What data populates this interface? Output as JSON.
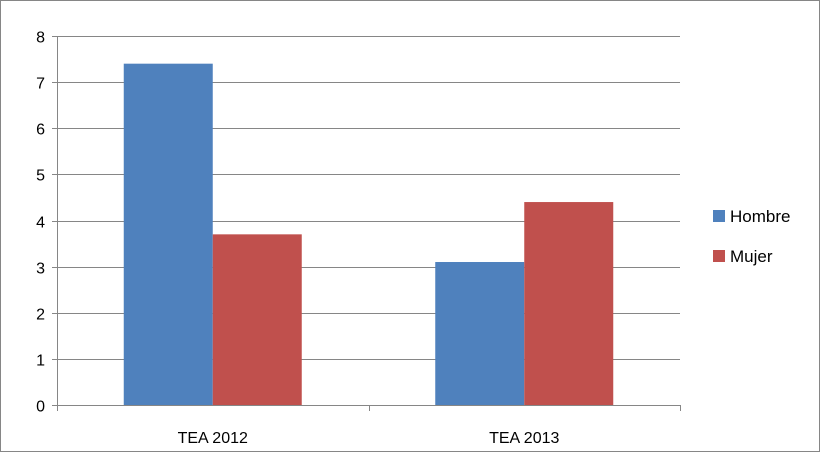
{
  "chart_data": {
    "type": "bar",
    "title": "",
    "xlabel": "",
    "ylabel": "",
    "categories": [
      "TEA 2012",
      "TEA 2013"
    ],
    "series": [
      {
        "name": "Hombre",
        "values": [
          7.4,
          3.1
        ],
        "color": "#4F81BD"
      },
      {
        "name": "Mujer",
        "values": [
          3.7,
          4.4
        ],
        "color": "#C0504D"
      }
    ],
    "ylim": [
      0,
      8
    ],
    "yticks": [
      0,
      1,
      2,
      3,
      4,
      5,
      6,
      7,
      8
    ],
    "grid": true,
    "legend_position": "right"
  }
}
